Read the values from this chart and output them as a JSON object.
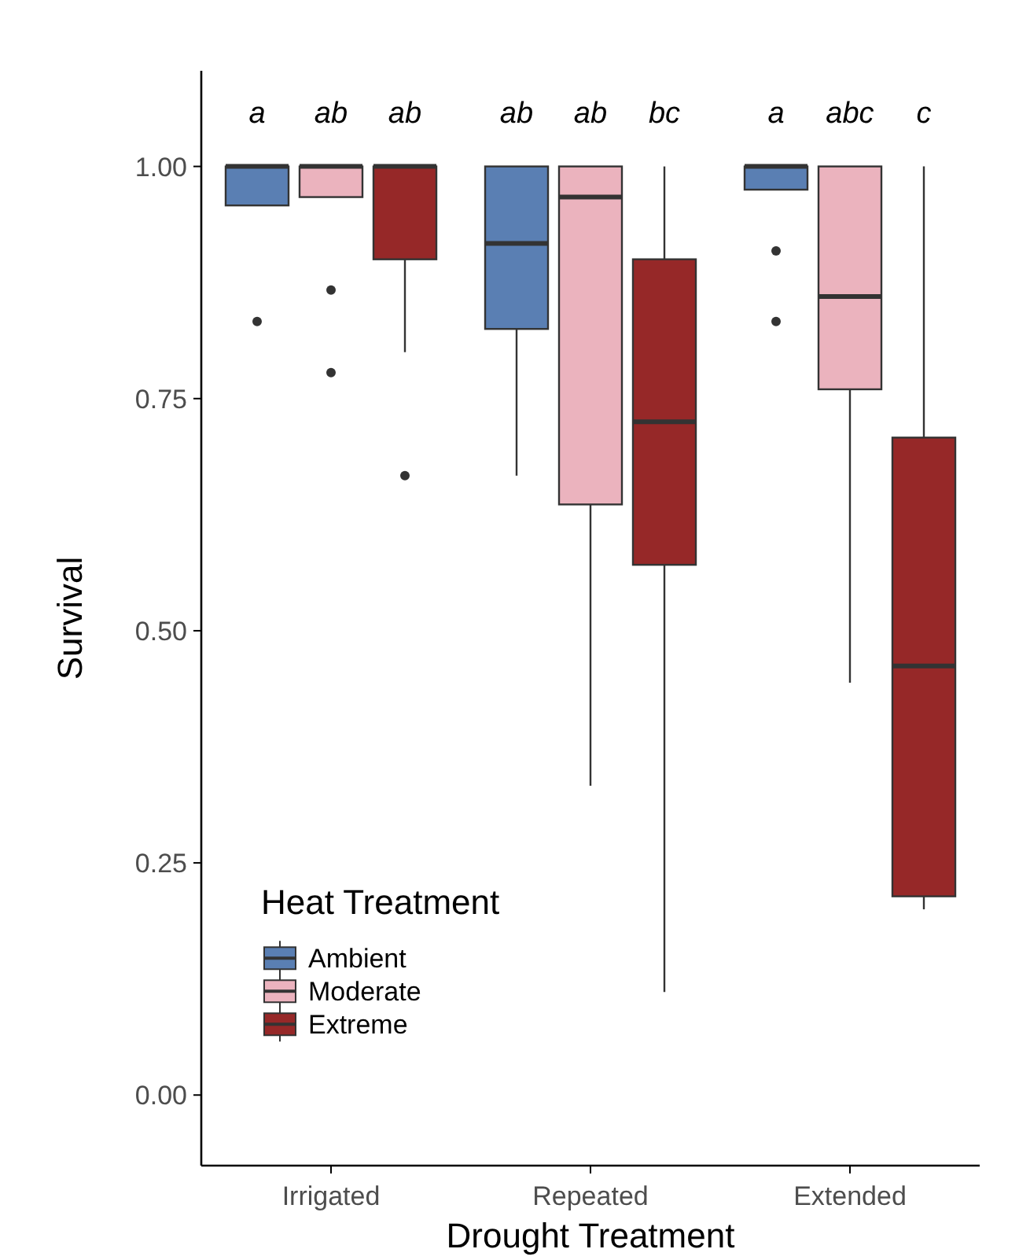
{
  "chart_data": {
    "type": "box",
    "xlabel": "Drought Treatment",
    "ylabel": "Survival",
    "legend_title": "Heat Treatment",
    "legend": "bottom left",
    "grid": false,
    "categories": [
      "Irrigated",
      "Repeated",
      "Extended"
    ],
    "ylim": [
      -0.076,
      1.103
    ],
    "yticks": [
      {
        "value": 0,
        "label": "0.00"
      },
      {
        "value": 0.25,
        "label": "0.25"
      },
      {
        "value": 0.5,
        "label": "0.50"
      },
      {
        "value": 0.75,
        "label": "0.75"
      },
      {
        "value": 1,
        "label": "1.00"
      }
    ],
    "series": [
      {
        "name": "Ambient",
        "color": "#5a7fb3",
        "boxes": [
          {
            "low": 0.958,
            "q1": 0.958,
            "median": 1,
            "q3": 1,
            "high": 1,
            "outliers": [
              0.833
            ]
          },
          {
            "low": 0.667,
            "q1": 0.825,
            "median": 0.917,
            "q3": 1,
            "high": 1
          },
          {
            "low": 0.975,
            "q1": 0.975,
            "median": 1,
            "q3": 1,
            "high": 1,
            "outliers": [
              0.909,
              0.833
            ]
          }
        ]
      },
      {
        "name": "Moderate",
        "color": "#ebb3be",
        "boxes": [
          {
            "low": 0.967,
            "q1": 0.967,
            "median": 1,
            "q3": 1,
            "high": 1,
            "outliers": [
              0.867,
              0.778
            ]
          },
          {
            "low": 0.333,
            "q1": 0.636,
            "median": 0.967,
            "q3": 1,
            "high": 1
          },
          {
            "low": 0.444,
            "q1": 0.76,
            "median": 0.86,
            "q3": 1,
            "high": 1
          }
        ]
      },
      {
        "name": "Extreme",
        "color": "#962828",
        "boxes": [
          {
            "low": 0.8,
            "q1": 0.9,
            "median": 1,
            "q3": 1,
            "high": 1,
            "outliers": [
              0.667
            ]
          },
          {
            "low": 0.111,
            "q1": 0.571,
            "median": 0.725,
            "q3": 0.9,
            "high": 1
          },
          {
            "low": 0.2,
            "q1": 0.214,
            "median": 0.462,
            "q3": 0.708,
            "high": 1
          }
        ]
      }
    ],
    "annotations": [
      "a",
      "ab",
      "ab",
      "ab",
      "ab",
      "bc",
      "a",
      "abc",
      "c"
    ]
  }
}
